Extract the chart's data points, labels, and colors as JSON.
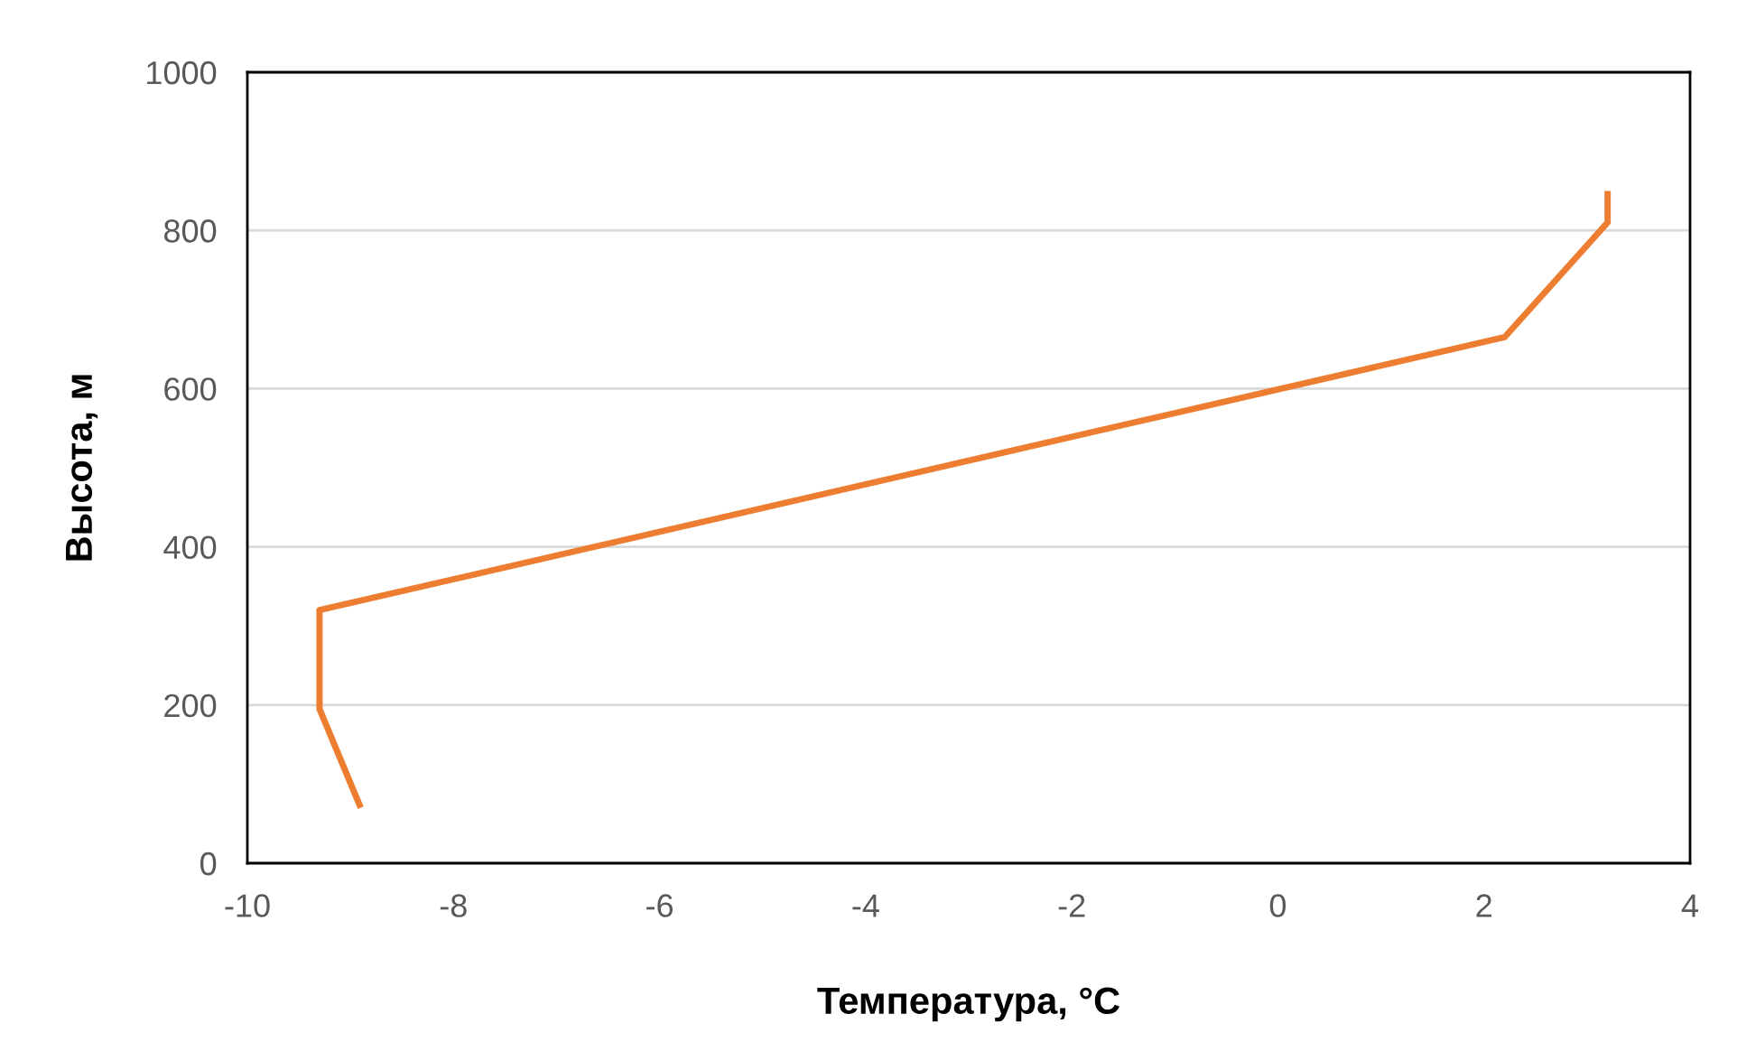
{
  "chart_data": {
    "type": "line",
    "xlabel": "Температура, °C",
    "ylabel": "Высота, м",
    "series": [
      {
        "color": "#ed7d31",
        "x": [
          -8.9,
          -9.3,
          -9.3,
          2.2,
          3.2,
          3.2
        ],
        "values": [
          70,
          195,
          320,
          665,
          810,
          850
        ]
      }
    ],
    "xlim": [
      -10,
      4
    ],
    "xticks": [
      -10,
      -8,
      -6,
      -4,
      -2,
      0,
      2,
      4
    ],
    "ylim": [
      0,
      1000
    ],
    "yticks": [
      0,
      200,
      400,
      600,
      800,
      1000
    ],
    "grid": "y",
    "marker": "none",
    "line_style": "solid"
  }
}
